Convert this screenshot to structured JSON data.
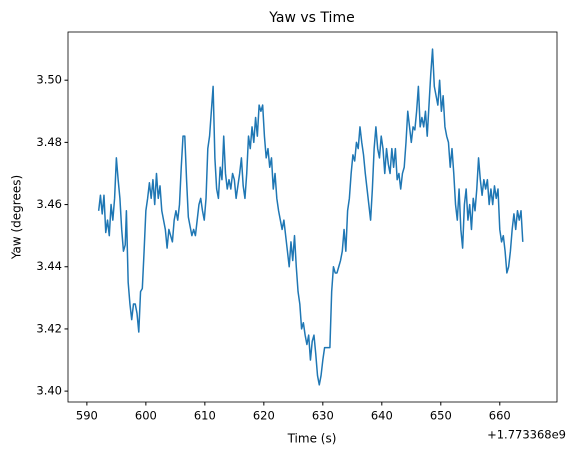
{
  "chart_data": {
    "type": "line",
    "title": "Yaw vs Time",
    "x_label": "Time (s)",
    "y_label": "Yaw (degrees)",
    "x_offset_label": "+1.773368e9",
    "x": [
      592,
      592.3,
      592.6,
      592.9,
      593.2,
      593.5,
      593.8,
      594.1,
      594.4,
      594.7,
      595,
      595.3,
      595.6,
      595.9,
      596.2,
      596.5,
      596.7,
      597,
      597.3,
      597.6,
      597.9,
      598.2,
      598.5,
      598.8,
      599.1,
      599.4,
      599.7,
      600,
      600.3,
      600.6,
      600.9,
      601.2,
      601.5,
      601.8,
      602.1,
      602.4,
      602.7,
      603,
      603.3,
      603.6,
      603.9,
      604.2,
      604.5,
      604.8,
      605.1,
      605.4,
      605.7,
      606,
      606.3,
      606.6,
      606.9,
      607.2,
      607.5,
      607.8,
      608.1,
      608.4,
      608.7,
      609,
      609.3,
      609.6,
      609.9,
      610.2,
      610.5,
      610.8,
      611.1,
      611.4,
      611.7,
      612,
      612.3,
      612.6,
      612.9,
      613.2,
      613.5,
      613.8,
      614.1,
      614.4,
      614.7,
      615,
      615.3,
      615.6,
      615.9,
      616.2,
      616.5,
      616.8,
      617.1,
      617.4,
      617.7,
      618,
      618.3,
      618.6,
      618.9,
      619.2,
      619.5,
      619.8,
      620.1,
      620.4,
      620.7,
      621,
      621.3,
      621.6,
      621.9,
      622.2,
      622.5,
      622.8,
      623.1,
      623.4,
      623.7,
      624,
      624.3,
      624.6,
      624.9,
      625.2,
      625.5,
      625.8,
      626.1,
      626.4,
      626.7,
      627,
      627.3,
      627.6,
      627.9,
      628.2,
      628.5,
      628.8,
      629.1,
      629.4,
      629.7,
      630,
      630.3,
      630.6,
      630.9,
      631.2,
      631.5,
      631.8,
      632.1,
      632.4,
      632.7,
      633,
      633.3,
      633.6,
      633.9,
      634.2,
      634.5,
      634.8,
      635.1,
      635.4,
      635.7,
      636,
      636.3,
      636.6,
      636.9,
      637.2,
      637.5,
      637.8,
      638.1,
      638.4,
      638.7,
      639,
      639.3,
      639.6,
      639.9,
      640.2,
      640.5,
      640.8,
      641.1,
      641.4,
      641.7,
      642,
      642.3,
      642.6,
      642.9,
      643.2,
      643.5,
      643.8,
      644.1,
      644.4,
      644.7,
      645,
      645.3,
      645.6,
      645.9,
      646.2,
      646.5,
      646.8,
      647.1,
      647.4,
      647.7,
      648,
      648.3,
      648.6,
      648.9,
      649.2,
      649.5,
      649.8,
      650.1,
      650.4,
      650.7,
      651,
      651.3,
      651.6,
      651.9,
      652.2,
      652.5,
      652.8,
      653.1,
      653.4,
      653.7,
      654,
      654.3,
      654.6,
      654.9,
      655.2,
      655.5,
      655.8,
      656.1,
      656.4,
      656.7,
      657,
      657.3,
      657.6,
      657.9,
      658.2,
      658.5,
      658.8,
      659.1,
      659.4,
      659.7,
      660,
      660.3,
      660.6,
      660.9,
      661.2,
      661.5,
      661.8,
      662.1,
      662.4,
      662.7,
      663,
      663.3,
      663.6,
      663.9
    ],
    "series": [
      {
        "color": "#1f77b4",
        "values": [
          3.458,
          3.463,
          3.457,
          3.463,
          3.451,
          3.455,
          3.45,
          3.46,
          3.455,
          3.462,
          3.475,
          3.468,
          3.462,
          3.452,
          3.445,
          3.447,
          3.458,
          3.435,
          3.428,
          3.423,
          3.428,
          3.428,
          3.425,
          3.419,
          3.432,
          3.433,
          3.445,
          3.458,
          3.462,
          3.467,
          3.462,
          3.468,
          3.46,
          3.47,
          3.462,
          3.466,
          3.458,
          3.455,
          3.452,
          3.446,
          3.452,
          3.45,
          3.448,
          3.455,
          3.458,
          3.455,
          3.46,
          3.472,
          3.482,
          3.482,
          3.468,
          3.456,
          3.453,
          3.45,
          3.452,
          3.45,
          3.455,
          3.46,
          3.462,
          3.458,
          3.455,
          3.462,
          3.478,
          3.482,
          3.49,
          3.498,
          3.475,
          3.465,
          3.462,
          3.472,
          3.468,
          3.482,
          3.47,
          3.465,
          3.468,
          3.465,
          3.47,
          3.468,
          3.462,
          3.466,
          3.47,
          3.475,
          3.466,
          3.462,
          3.47,
          3.482,
          3.478,
          3.485,
          3.48,
          3.488,
          3.482,
          3.492,
          3.49,
          3.492,
          3.482,
          3.475,
          3.478,
          3.472,
          3.475,
          3.465,
          3.47,
          3.462,
          3.458,
          3.455,
          3.452,
          3.455,
          3.45,
          3.445,
          3.44,
          3.448,
          3.442,
          3.45,
          3.44,
          3.432,
          3.428,
          3.42,
          3.422,
          3.418,
          3.415,
          3.418,
          3.41,
          3.416,
          3.418,
          3.412,
          3.405,
          3.402,
          3.405,
          3.41,
          3.414,
          3.414,
          3.414,
          3.414,
          3.432,
          3.44,
          3.438,
          3.438,
          3.44,
          3.442,
          3.445,
          3.452,
          3.445,
          3.458,
          3.462,
          3.47,
          3.476,
          3.474,
          3.48,
          3.478,
          3.485,
          3.48,
          3.476,
          3.47,
          3.465,
          3.46,
          3.455,
          3.465,
          3.478,
          3.485,
          3.478,
          3.475,
          3.482,
          3.478,
          3.47,
          3.478,
          3.473,
          3.47,
          3.478,
          3.472,
          3.478,
          3.468,
          3.47,
          3.465,
          3.47,
          3.472,
          3.48,
          3.49,
          3.485,
          3.48,
          3.485,
          3.484,
          3.49,
          3.498,
          3.485,
          3.488,
          3.485,
          3.49,
          3.482,
          3.492,
          3.502,
          3.51,
          3.498,
          3.495,
          3.492,
          3.5,
          3.49,
          3.495,
          3.485,
          3.482,
          3.48,
          3.472,
          3.478,
          3.47,
          3.46,
          3.455,
          3.465,
          3.452,
          3.446,
          3.46,
          3.465,
          3.455,
          3.46,
          3.452,
          3.462,
          3.458,
          3.465,
          3.475,
          3.468,
          3.463,
          3.468,
          3.465,
          3.468,
          3.46,
          3.465,
          3.46,
          3.466,
          3.462,
          3.465,
          3.452,
          3.448,
          3.45,
          3.445,
          3.438,
          3.44,
          3.445,
          3.452,
          3.457,
          3.452,
          3.458,
          3.455,
          3.458,
          3.448
        ]
      }
    ],
    "xlim": [
      586.8,
      669.7
    ],
    "xticks": [
      590,
      600,
      610,
      620,
      630,
      640,
      650,
      660
    ],
    "ylim": [
      3.3965,
      3.5155
    ],
    "yticks": [
      {
        "value": 3.4,
        "label": "3.40"
      },
      {
        "value": 3.42,
        "label": "3.42"
      },
      {
        "value": 3.44,
        "label": "3.44"
      },
      {
        "value": 3.46,
        "label": "3.46"
      },
      {
        "value": 3.48,
        "label": "3.48"
      },
      {
        "value": 3.5,
        "label": "3.50"
      }
    ],
    "grid": false
  }
}
